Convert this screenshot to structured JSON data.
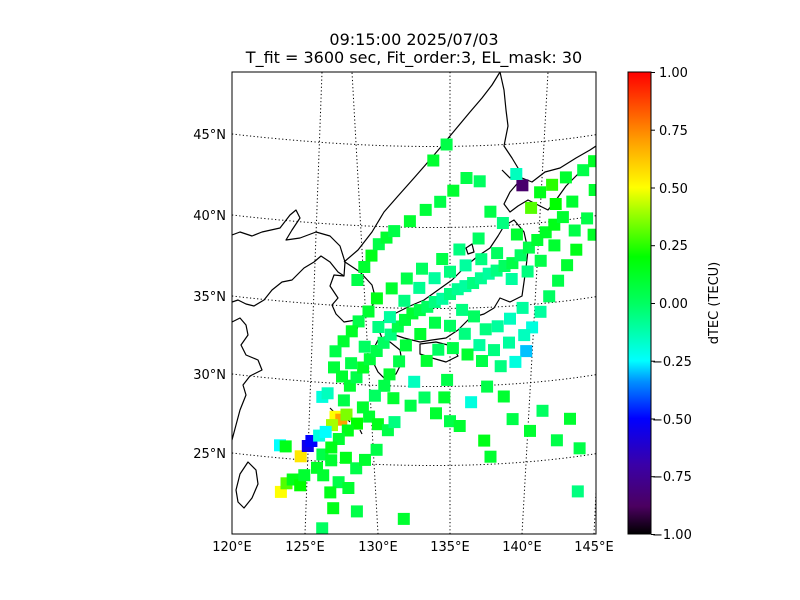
{
  "title": {
    "line1": "09:15:00 2025/07/03",
    "line2": "T_fit = 3600 sec, Fit_order:3, EL_mask: 30"
  },
  "colorbar": {
    "label": "dTEC (TECU)",
    "range": [
      -1.0,
      1.0
    ],
    "ticks": [
      "1.00",
      "0.75",
      "0.50",
      "0.25",
      "0.00",
      "−0.25",
      "−0.50",
      "−0.75",
      "−1.00"
    ]
  },
  "map": {
    "lon_range": [
      120,
      145
    ],
    "lat_range": [
      20,
      48
    ],
    "lon_ticks": [
      "120°E",
      "125°E",
      "130°E",
      "135°E",
      "140°E",
      "145°E"
    ],
    "lat_ticks": [
      "25°N",
      "30°N",
      "35°N",
      "40°N",
      "45°N"
    ],
    "gridlines": "dotted",
    "coastlines": true
  },
  "chart_data": {
    "type": "heatmap",
    "title": "09:15:00 2025/07/03 / T_fit = 3600 sec, Fit_order:3, EL_mask: 30",
    "colorbar_label": "dTEC (TECU)",
    "vmin": -1.0,
    "vmax": 1.0,
    "points_note": "lon, lat, dTEC",
    "points": [
      [
        126.8,
        27.5,
        0.5
      ],
      [
        127.2,
        27.3,
        0.7
      ],
      [
        126.5,
        27.0,
        0.4
      ],
      [
        127.6,
        27.6,
        0.35
      ],
      [
        124.0,
        25.2,
        0.55
      ],
      [
        124.6,
        25.8,
        -0.55
      ],
      [
        124.9,
        26.1,
        -0.5
      ],
      [
        122.6,
        26.0,
        -0.25
      ],
      [
        123.0,
        25.9,
        0.15
      ],
      [
        125.5,
        26.4,
        -0.2
      ],
      [
        126.0,
        26.6,
        -0.25
      ],
      [
        125.6,
        25.2,
        0.05
      ],
      [
        129.2,
        27.4,
        0.1
      ],
      [
        129.8,
        26.9,
        0.15
      ],
      [
        130.5,
        26.5,
        0.05
      ],
      [
        131.0,
        27.0,
        -0.05
      ],
      [
        126.0,
        28.8,
        -0.2
      ],
      [
        126.4,
        29.0,
        -0.15
      ],
      [
        127.5,
        28.5,
        0.05
      ],
      [
        128.0,
        29.4,
        0.1
      ],
      [
        128.5,
        29.9,
        0.05
      ],
      [
        129.0,
        30.5,
        0.12
      ],
      [
        129.5,
        31.0,
        0.08
      ],
      [
        130.0,
        31.5,
        0.05
      ],
      [
        130.5,
        32.0,
        0.0
      ],
      [
        131.0,
        32.5,
        -0.05
      ],
      [
        131.5,
        33.0,
        0.05
      ],
      [
        132.0,
        33.4,
        0.08
      ],
      [
        132.5,
        33.8,
        0.1
      ],
      [
        133.0,
        34.0,
        0.05
      ],
      [
        133.5,
        34.2,
        0.0
      ],
      [
        134.0,
        34.5,
        -0.05
      ],
      [
        134.5,
        34.7,
        -0.1
      ],
      [
        135.0,
        35.0,
        -0.05
      ],
      [
        135.5,
        35.3,
        -0.08
      ],
      [
        136.0,
        35.5,
        -0.1
      ],
      [
        136.5,
        35.7,
        -0.05
      ],
      [
        137.0,
        36.0,
        -0.08
      ],
      [
        137.5,
        36.3,
        -0.1
      ],
      [
        138.0,
        36.5,
        -0.05
      ],
      [
        138.5,
        36.8,
        0.0
      ],
      [
        139.0,
        37.0,
        0.05
      ],
      [
        139.5,
        37.5,
        0.0
      ],
      [
        140.0,
        38.0,
        0.05
      ],
      [
        140.5,
        38.5,
        0.1
      ],
      [
        141.0,
        39.0,
        0.12
      ],
      [
        141.5,
        39.5,
        0.15
      ],
      [
        142.0,
        40.0,
        0.1
      ],
      [
        139.4,
        41.9,
        -0.85
      ],
      [
        139.0,
        42.6,
        -0.15
      ],
      [
        140.5,
        41.5,
        0.15
      ],
      [
        141.2,
        42.0,
        0.25
      ],
      [
        142.0,
        42.5,
        0.1
      ],
      [
        143.0,
        43.0,
        0.05
      ],
      [
        143.6,
        43.6,
        0.12
      ],
      [
        144.2,
        44.1,
        0.08
      ],
      [
        144.8,
        44.6,
        0.05
      ],
      [
        140.0,
        40.5,
        0.3
      ],
      [
        141.5,
        40.8,
        0.2
      ],
      [
        142.5,
        41.0,
        0.1
      ],
      [
        143.5,
        40.0,
        0.05
      ],
      [
        144.0,
        39.0,
        0.12
      ],
      [
        143.0,
        38.0,
        0.15
      ],
      [
        142.5,
        37.0,
        0.1
      ],
      [
        142.0,
        36.0,
        0.05
      ],
      [
        141.5,
        35.0,
        0.0
      ],
      [
        141.0,
        34.0,
        -0.1
      ],
      [
        140.5,
        33.0,
        -0.2
      ],
      [
        140.0,
        32.5,
        -0.15
      ],
      [
        139.0,
        32.0,
        -0.1
      ],
      [
        138.0,
        31.5,
        -0.05
      ],
      [
        137.0,
        31.8,
        -0.1
      ],
      [
        136.0,
        32.5,
        -0.05
      ],
      [
        135.0,
        33.0,
        0.0
      ],
      [
        134.0,
        33.2,
        0.05
      ],
      [
        133.0,
        32.5,
        0.1
      ],
      [
        132.0,
        31.8,
        0.08
      ],
      [
        131.5,
        30.8,
        0.05
      ],
      [
        130.8,
        30.0,
        0.1
      ],
      [
        132.5,
        29.5,
        -0.15
      ],
      [
        133.2,
        28.5,
        0.0
      ],
      [
        134.0,
        27.5,
        0.1
      ],
      [
        135.0,
        27.0,
        0.05
      ],
      [
        135.7,
        26.7,
        0.1
      ],
      [
        137.5,
        25.8,
        0.15
      ],
      [
        138.0,
        24.8,
        0.1
      ],
      [
        139.5,
        27.2,
        0.05
      ],
      [
        140.8,
        26.5,
        0.1
      ],
      [
        141.6,
        27.8,
        0.0
      ],
      [
        142.8,
        26.0,
        0.05
      ],
      [
        143.6,
        27.4,
        0.1
      ],
      [
        144.5,
        25.6,
        0.05
      ],
      [
        144.7,
        22.9,
        -0.05
      ],
      [
        122.2,
        23.1,
        0.5
      ],
      [
        122.7,
        23.6,
        0.3
      ],
      [
        123.2,
        23.8,
        0.15
      ],
      [
        123.7,
        23.4,
        0.2
      ],
      [
        124.1,
        24.0,
        0.1
      ],
      [
        125.1,
        24.4,
        0.12
      ],
      [
        126.2,
        24.8,
        0.1
      ],
      [
        127.3,
        24.9,
        0.15
      ],
      [
        128.0,
        24.2,
        0.05
      ],
      [
        128.7,
        24.7,
        0.1
      ],
      [
        129.6,
        25.3,
        0.05
      ],
      [
        126.0,
        21.8,
        0.15
      ],
      [
        127.8,
        21.5,
        0.05
      ],
      [
        131.4,
        20.9,
        0.1
      ],
      [
        125.0,
        20.6,
        0.0
      ],
      [
        129.0,
        36.0,
        0.05
      ],
      [
        129.5,
        36.8,
        0.1
      ],
      [
        130.0,
        37.5,
        0.15
      ],
      [
        130.5,
        38.2,
        0.05
      ],
      [
        131.0,
        38.6,
        0.1
      ],
      [
        131.5,
        39.0,
        0.05
      ],
      [
        132.5,
        39.6,
        0.1
      ],
      [
        133.5,
        40.3,
        0.08
      ],
      [
        134.4,
        40.8,
        0.05
      ],
      [
        135.2,
        41.5,
        0.1
      ],
      [
        136.0,
        42.3,
        0.05
      ],
      [
        136.8,
        42.1,
        0.0
      ],
      [
        134.8,
        44.4,
        0.05
      ],
      [
        134.0,
        43.4,
        0.1
      ],
      [
        137.5,
        40.2,
        0.05
      ],
      [
        138.3,
        39.5,
        -0.05
      ],
      [
        139.2,
        38.8,
        0.1
      ],
      [
        136.8,
        38.5,
        0.0
      ],
      [
        135.6,
        37.8,
        -0.05
      ],
      [
        134.5,
        37.2,
        0.05
      ],
      [
        133.2,
        36.6,
        0.0
      ],
      [
        132.2,
        36.0,
        0.05
      ],
      [
        131.2,
        35.4,
        0.1
      ],
      [
        130.2,
        34.8,
        0.15
      ],
      [
        129.6,
        34.0,
        0.1
      ],
      [
        128.9,
        33.4,
        0.05
      ],
      [
        128.4,
        32.8,
        0.12
      ],
      [
        127.8,
        32.2,
        0.1
      ],
      [
        127.2,
        31.6,
        0.05
      ],
      [
        127.0,
        30.6,
        0.08
      ],
      [
        127.5,
        30.0,
        0.1
      ],
      [
        128.2,
        30.8,
        0.05
      ],
      [
        129.2,
        31.8,
        0.0
      ],
      [
        130.2,
        33.0,
        -0.05
      ],
      [
        131.0,
        33.6,
        -0.1
      ],
      [
        132.0,
        34.6,
        -0.05
      ],
      [
        133.0,
        35.4,
        -0.08
      ],
      [
        134.0,
        36.0,
        -0.1
      ],
      [
        135.0,
        36.4,
        -0.05
      ],
      [
        136.0,
        36.8,
        -0.1
      ],
      [
        137.0,
        37.2,
        -0.05
      ],
      [
        138.0,
        37.6,
        0.0
      ],
      [
        139.0,
        36.0,
        -0.1
      ],
      [
        140.0,
        36.5,
        -0.05
      ],
      [
        140.8,
        37.2,
        0.05
      ],
      [
        141.6,
        38.2,
        0.1
      ],
      [
        142.8,
        39.2,
        0.05
      ],
      [
        143.8,
        41.8,
        0.1
      ],
      [
        139.8,
        34.2,
        -0.1
      ],
      [
        139.0,
        33.5,
        -0.15
      ],
      [
        138.2,
        33.0,
        -0.1
      ],
      [
        137.4,
        32.8,
        -0.05
      ],
      [
        136.6,
        33.6,
        0.0
      ],
      [
        135.8,
        34.0,
        -0.05
      ],
      [
        140.2,
        31.5,
        -0.3
      ],
      [
        139.5,
        30.8,
        -0.2
      ],
      [
        138.5,
        30.5,
        -0.05
      ],
      [
        137.2,
        30.8,
        0.05
      ],
      [
        136.2,
        31.2,
        0.1
      ],
      [
        135.2,
        31.6,
        0.05
      ],
      [
        134.2,
        31.5,
        0.0
      ],
      [
        133.4,
        30.8,
        0.1
      ],
      [
        134.8,
        29.6,
        0.05
      ],
      [
        134.6,
        28.5,
        0.1
      ],
      [
        136.5,
        28.2,
        -0.2
      ],
      [
        137.6,
        29.2,
        0.05
      ],
      [
        138.8,
        28.6,
        0.1
      ],
      [
        132.2,
        28.0,
        0.05
      ],
      [
        131.0,
        28.5,
        0.1
      ],
      [
        130.4,
        29.3,
        0.05
      ],
      [
        129.7,
        28.7,
        0.0
      ],
      [
        128.8,
        28.0,
        0.1
      ],
      [
        128.3,
        27.0,
        0.2
      ],
      [
        127.6,
        26.6,
        0.15
      ],
      [
        126.9,
        26.1,
        0.1
      ],
      [
        126.3,
        25.6,
        0.15
      ],
      [
        125.5,
        23.9,
        0.1
      ],
      [
        126.6,
        23.4,
        0.05
      ],
      [
        127.3,
        23.0,
        0.1
      ],
      [
        125.9,
        22.8,
        0.15
      ]
    ]
  }
}
